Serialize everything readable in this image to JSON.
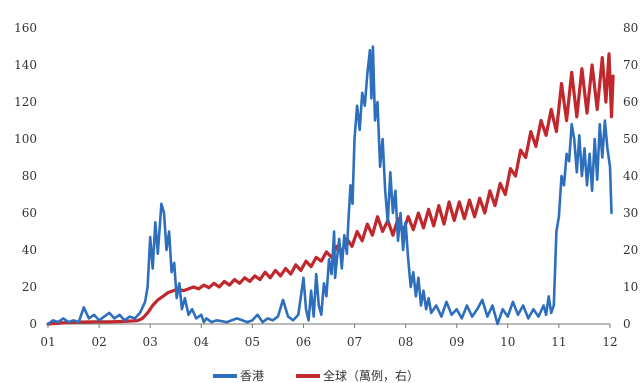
{
  "chart_data": {
    "type": "line",
    "x_ticks": [
      "01",
      "02",
      "03",
      "04",
      "05",
      "06",
      "07",
      "08",
      "09",
      "10",
      "11",
      "12"
    ],
    "y_left_ticks": [
      "0",
      "20",
      "40",
      "60",
      "80",
      "100",
      "120",
      "140",
      "160"
    ],
    "y_right_ticks": [
      "0",
      "10",
      "20",
      "30",
      "40",
      "50",
      "60",
      "70",
      "80"
    ],
    "y_left_range": [
      0,
      160
    ],
    "y_right_range": [
      0,
      80
    ],
    "x_range": [
      1,
      12
    ],
    "series": [
      {
        "name": "香港",
        "axis": "left",
        "color": "#2e6fbd",
        "points": [
          [
            1.0,
            0
          ],
          [
            1.1,
            2
          ],
          [
            1.2,
            1
          ],
          [
            1.3,
            3
          ],
          [
            1.4,
            1
          ],
          [
            1.5,
            2
          ],
          [
            1.6,
            1
          ],
          [
            1.7,
            9
          ],
          [
            1.8,
            3
          ],
          [
            1.9,
            5
          ],
          [
            2.0,
            2
          ],
          [
            2.1,
            4
          ],
          [
            2.2,
            6
          ],
          [
            2.3,
            3
          ],
          [
            2.4,
            5
          ],
          [
            2.5,
            2
          ],
          [
            2.6,
            4
          ],
          [
            2.7,
            3
          ],
          [
            2.8,
            6
          ],
          [
            2.9,
            12
          ],
          [
            2.95,
            20
          ],
          [
            3.0,
            47
          ],
          [
            3.05,
            30
          ],
          [
            3.1,
            55
          ],
          [
            3.15,
            38
          ],
          [
            3.22,
            65
          ],
          [
            3.27,
            60
          ],
          [
            3.32,
            40
          ],
          [
            3.37,
            50
          ],
          [
            3.42,
            28
          ],
          [
            3.47,
            33
          ],
          [
            3.52,
            14
          ],
          [
            3.57,
            22
          ],
          [
            3.62,
            8
          ],
          [
            3.68,
            14
          ],
          [
            3.75,
            5
          ],
          [
            3.82,
            8
          ],
          [
            3.9,
            3
          ],
          [
            4.0,
            5
          ],
          [
            4.05,
            1
          ],
          [
            4.1,
            3
          ],
          [
            4.2,
            1
          ],
          [
            4.3,
            2
          ],
          [
            4.5,
            1
          ],
          [
            4.7,
            3
          ],
          [
            4.9,
            1
          ],
          [
            5.0,
            2
          ],
          [
            5.1,
            5
          ],
          [
            5.2,
            1
          ],
          [
            5.3,
            3
          ],
          [
            5.4,
            2
          ],
          [
            5.5,
            4
          ],
          [
            5.6,
            13
          ],
          [
            5.7,
            4
          ],
          [
            5.8,
            2
          ],
          [
            5.9,
            5
          ],
          [
            6.0,
            25
          ],
          [
            6.05,
            8
          ],
          [
            6.1,
            2
          ],
          [
            6.15,
            18
          ],
          [
            6.2,
            4
          ],
          [
            6.25,
            27
          ],
          [
            6.3,
            10
          ],
          [
            6.35,
            5
          ],
          [
            6.4,
            22
          ],
          [
            6.45,
            15
          ],
          [
            6.5,
            35
          ],
          [
            6.55,
            27
          ],
          [
            6.6,
            50
          ],
          [
            6.62,
            25
          ],
          [
            6.65,
            34
          ],
          [
            6.7,
            46
          ],
          [
            6.75,
            30
          ],
          [
            6.8,
            48
          ],
          [
            6.85,
            38
          ],
          [
            6.88,
            56
          ],
          [
            6.92,
            75
          ],
          [
            6.96,
            65
          ],
          [
            7.0,
            100
          ],
          [
            7.05,
            118
          ],
          [
            7.1,
            105
          ],
          [
            7.15,
            125
          ],
          [
            7.2,
            118
          ],
          [
            7.25,
            135
          ],
          [
            7.3,
            148
          ],
          [
            7.33,
            122
          ],
          [
            7.36,
            150
          ],
          [
            7.4,
            110
          ],
          [
            7.45,
            120
          ],
          [
            7.5,
            85
          ],
          [
            7.55,
            100
          ],
          [
            7.6,
            72
          ],
          [
            7.65,
            55
          ],
          [
            7.7,
            82
          ],
          [
            7.75,
            60
          ],
          [
            7.8,
            72
          ],
          [
            7.85,
            45
          ],
          [
            7.9,
            60
          ],
          [
            7.95,
            40
          ],
          [
            8.0,
            55
          ],
          [
            8.05,
            35
          ],
          [
            8.1,
            20
          ],
          [
            8.15,
            28
          ],
          [
            8.2,
            15
          ],
          [
            8.25,
            25
          ],
          [
            8.3,
            10
          ],
          [
            8.35,
            18
          ],
          [
            8.4,
            8
          ],
          [
            8.45,
            14
          ],
          [
            8.5,
            6
          ],
          [
            8.6,
            10
          ],
          [
            8.7,
            4
          ],
          [
            8.8,
            12
          ],
          [
            8.9,
            5
          ],
          [
            9.0,
            8
          ],
          [
            9.1,
            3
          ],
          [
            9.2,
            10
          ],
          [
            9.3,
            4
          ],
          [
            9.4,
            8
          ],
          [
            9.5,
            13
          ],
          [
            9.6,
            4
          ],
          [
            9.7,
            10
          ],
          [
            9.8,
            0
          ],
          [
            9.9,
            8
          ],
          [
            10.0,
            4
          ],
          [
            10.1,
            12
          ],
          [
            10.2,
            5
          ],
          [
            10.3,
            10
          ],
          [
            10.4,
            3
          ],
          [
            10.5,
            8
          ],
          [
            10.6,
            4
          ],
          [
            10.7,
            10
          ],
          [
            10.75,
            5
          ],
          [
            10.8,
            15
          ],
          [
            10.85,
            6
          ],
          [
            10.9,
            10
          ],
          [
            10.95,
            50
          ],
          [
            11.0,
            58
          ],
          [
            11.05,
            80
          ],
          [
            11.1,
            75
          ],
          [
            11.15,
            92
          ],
          [
            11.2,
            88
          ],
          [
            11.25,
            108
          ],
          [
            11.3,
            100
          ],
          [
            11.35,
            82
          ],
          [
            11.4,
            102
          ],
          [
            11.45,
            80
          ],
          [
            11.5,
            95
          ],
          [
            11.55,
            75
          ],
          [
            11.6,
            92
          ],
          [
            11.65,
            72
          ],
          [
            11.7,
            100
          ],
          [
            11.75,
            78
          ],
          [
            11.8,
            108
          ],
          [
            11.85,
            90
          ],
          [
            11.9,
            110
          ],
          [
            11.95,
            95
          ],
          [
            12.0,
            85
          ],
          [
            12.03,
            60
          ]
        ]
      },
      {
        "name": "全球（萬例，右）",
        "axis": "right",
        "color": "#c0282d",
        "points": [
          [
            1.0,
            0
          ],
          [
            1.3,
            0.3
          ],
          [
            1.6,
            0.5
          ],
          [
            1.9,
            0.6
          ],
          [
            2.2,
            0.6
          ],
          [
            2.5,
            0.7
          ],
          [
            2.75,
            0.9
          ],
          [
            2.85,
            1.5
          ],
          [
            2.95,
            3
          ],
          [
            3.05,
            5
          ],
          [
            3.15,
            6.5
          ],
          [
            3.25,
            7.5
          ],
          [
            3.35,
            8.5
          ],
          [
            3.45,
            9
          ],
          [
            3.55,
            9.5
          ],
          [
            3.65,
            9
          ],
          [
            3.75,
            9.5
          ],
          [
            3.85,
            10
          ],
          [
            3.95,
            9.5
          ],
          [
            4.05,
            10.5
          ],
          [
            4.15,
            9.8
          ],
          [
            4.25,
            11
          ],
          [
            4.35,
            10
          ],
          [
            4.45,
            11.5
          ],
          [
            4.55,
            10.5
          ],
          [
            4.65,
            12
          ],
          [
            4.75,
            11
          ],
          [
            4.85,
            12.5
          ],
          [
            4.95,
            11.5
          ],
          [
            5.05,
            13
          ],
          [
            5.15,
            12
          ],
          [
            5.25,
            14
          ],
          [
            5.35,
            12.5
          ],
          [
            5.45,
            14.5
          ],
          [
            5.55,
            13
          ],
          [
            5.65,
            15
          ],
          [
            5.75,
            13.5
          ],
          [
            5.85,
            16
          ],
          [
            5.95,
            14.5
          ],
          [
            6.05,
            17
          ],
          [
            6.15,
            15.5
          ],
          [
            6.25,
            18
          ],
          [
            6.35,
            17
          ],
          [
            6.45,
            19.5
          ],
          [
            6.55,
            18
          ],
          [
            6.65,
            21
          ],
          [
            6.75,
            19.5
          ],
          [
            6.85,
            23
          ],
          [
            6.95,
            21
          ],
          [
            7.05,
            25
          ],
          [
            7.15,
            22.5
          ],
          [
            7.25,
            27
          ],
          [
            7.35,
            24
          ],
          [
            7.45,
            29
          ],
          [
            7.55,
            25
          ],
          [
            7.65,
            28
          ],
          [
            7.75,
            24
          ],
          [
            7.85,
            28.5
          ],
          [
            7.95,
            25
          ],
          [
            8.05,
            29
          ],
          [
            8.15,
            25.5
          ],
          [
            8.25,
            30
          ],
          [
            8.35,
            26
          ],
          [
            8.45,
            31
          ],
          [
            8.55,
            26.5
          ],
          [
            8.65,
            32
          ],
          [
            8.75,
            27
          ],
          [
            8.85,
            33
          ],
          [
            8.95,
            28
          ],
          [
            9.05,
            33
          ],
          [
            9.15,
            28.5
          ],
          [
            9.25,
            33.5
          ],
          [
            9.35,
            29
          ],
          [
            9.45,
            34
          ],
          [
            9.55,
            30
          ],
          [
            9.65,
            36
          ],
          [
            9.75,
            32
          ],
          [
            9.85,
            38
          ],
          [
            9.95,
            35
          ],
          [
            10.05,
            42
          ],
          [
            10.15,
            40
          ],
          [
            10.25,
            47
          ],
          [
            10.35,
            45
          ],
          [
            10.45,
            52
          ],
          [
            10.55,
            48
          ],
          [
            10.65,
            55
          ],
          [
            10.75,
            51
          ],
          [
            10.85,
            58
          ],
          [
            10.95,
            52
          ],
          [
            11.05,
            65
          ],
          [
            11.15,
            55
          ],
          [
            11.25,
            68
          ],
          [
            11.35,
            56
          ],
          [
            11.45,
            69
          ],
          [
            11.55,
            57
          ],
          [
            11.65,
            70
          ],
          [
            11.75,
            58
          ],
          [
            11.85,
            72
          ],
          [
            11.92,
            60
          ],
          [
            11.98,
            73
          ],
          [
            12.03,
            56
          ],
          [
            12.06,
            67
          ]
        ]
      }
    ],
    "legend_position": "bottom",
    "grid": false
  }
}
